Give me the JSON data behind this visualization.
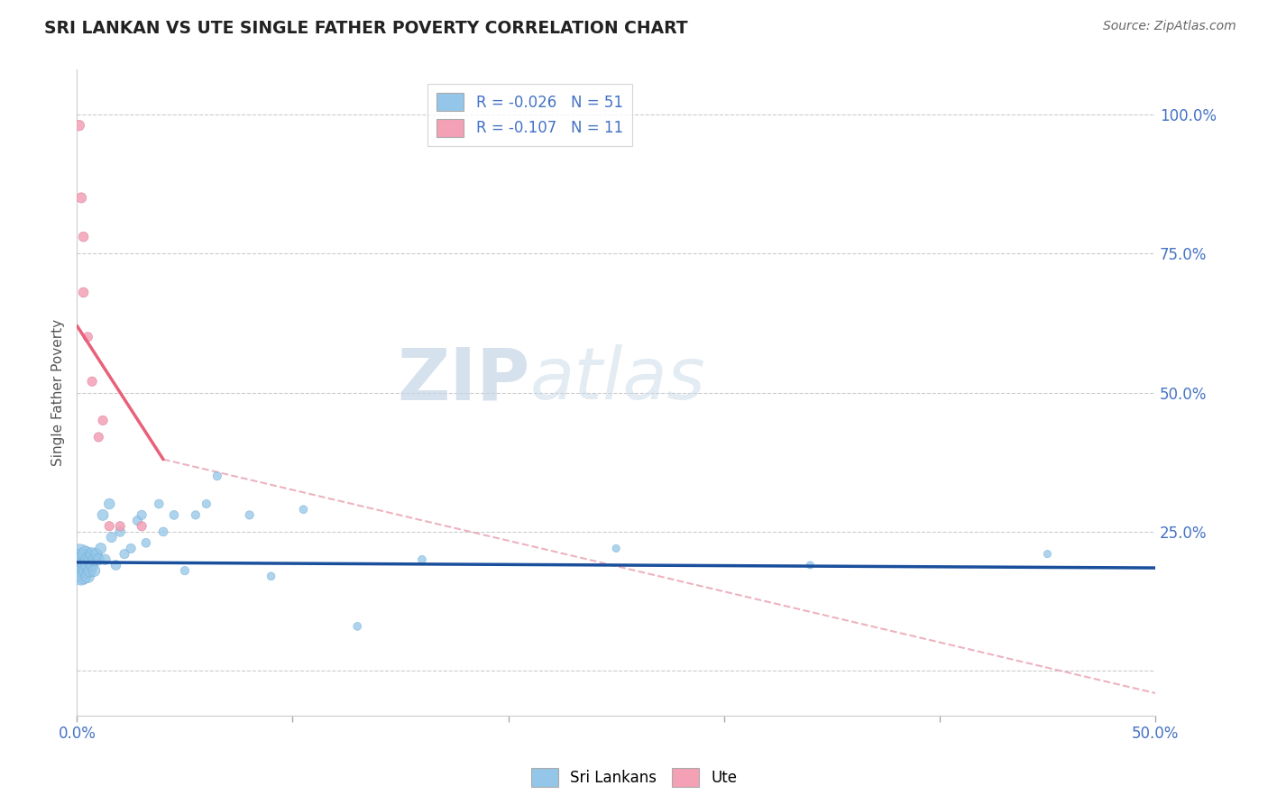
{
  "title": "SRI LANKAN VS UTE SINGLE FATHER POVERTY CORRELATION CHART",
  "source": "Source: ZipAtlas.com",
  "ylabel": "Single Father Poverty",
  "xlim": [
    0.0,
    0.5
  ],
  "ylim": [
    -0.08,
    1.08
  ],
  "legend_r1": "R = -0.026",
  "legend_n1": "N = 51",
  "legend_r2": "R = -0.107",
  "legend_n2": "N = 11",
  "color_sri": "#93c6e8",
  "color_ute": "#f4a0b5",
  "color_sri_line": "#1a4f9c",
  "color_ute_line": "#e8607a",
  "color_dashed": "#e8a0b0",
  "watermark_zip": "ZIP",
  "watermark_atlas": "atlas",
  "sri_lankan_x": [
    0.001,
    0.001,
    0.001,
    0.002,
    0.002,
    0.002,
    0.003,
    0.003,
    0.003,
    0.003,
    0.004,
    0.004,
    0.004,
    0.005,
    0.005,
    0.005,
    0.006,
    0.006,
    0.007,
    0.007,
    0.008,
    0.008,
    0.009,
    0.01,
    0.011,
    0.012,
    0.013,
    0.015,
    0.016,
    0.018,
    0.02,
    0.022,
    0.025,
    0.028,
    0.03,
    0.032,
    0.038,
    0.04,
    0.045,
    0.05,
    0.055,
    0.06,
    0.065,
    0.08,
    0.09,
    0.105,
    0.13,
    0.16,
    0.25,
    0.34,
    0.45
  ],
  "sri_lankan_y": [
    0.2,
    0.19,
    0.18,
    0.2,
    0.19,
    0.17,
    0.2,
    0.19,
    0.18,
    0.17,
    0.21,
    0.19,
    0.18,
    0.2,
    0.19,
    0.17,
    0.2,
    0.18,
    0.21,
    0.19,
    0.2,
    0.18,
    0.21,
    0.2,
    0.22,
    0.28,
    0.2,
    0.3,
    0.24,
    0.19,
    0.25,
    0.21,
    0.22,
    0.27,
    0.28,
    0.23,
    0.3,
    0.25,
    0.28,
    0.18,
    0.28,
    0.3,
    0.35,
    0.28,
    0.17,
    0.29,
    0.08,
    0.2,
    0.22,
    0.19,
    0.21
  ],
  "sri_lankan_sizes": [
    600,
    400,
    300,
    300,
    250,
    200,
    200,
    180,
    160,
    150,
    150,
    140,
    130,
    130,
    120,
    110,
    110,
    100,
    100,
    90,
    90,
    85,
    80,
    80,
    75,
    75,
    70,
    70,
    65,
    60,
    60,
    55,
    55,
    55,
    55,
    50,
    50,
    50,
    50,
    45,
    45,
    45,
    45,
    45,
    40,
    40,
    40,
    40,
    35,
    35,
    35
  ],
  "ute_x": [
    0.001,
    0.002,
    0.003,
    0.003,
    0.005,
    0.007,
    0.01,
    0.012,
    0.015,
    0.02,
    0.03
  ],
  "ute_y": [
    0.98,
    0.85,
    0.78,
    0.68,
    0.6,
    0.52,
    0.42,
    0.45,
    0.26,
    0.26,
    0.26
  ],
  "ute_sizes": [
    70,
    65,
    60,
    60,
    55,
    55,
    55,
    55,
    55,
    55,
    55
  ],
  "sri_line_x": [
    0.0,
    0.5
  ],
  "sri_line_y": [
    0.195,
    0.185
  ],
  "ute_line_x": [
    0.0,
    0.04
  ],
  "ute_line_y": [
    0.62,
    0.38
  ],
  "dashed_line_x": [
    0.04,
    0.5
  ],
  "dashed_line_y": [
    0.38,
    -0.04
  ],
  "ytick_positions": [
    0.0,
    0.25,
    0.5,
    0.75,
    1.0
  ],
  "ytick_labels": [
    "",
    "25.0%",
    "50.0%",
    "75.0%",
    "100.0%"
  ],
  "xtick_positions": [
    0.0,
    0.1,
    0.2,
    0.3,
    0.4,
    0.5
  ],
  "xtick_labels": [
    "0.0%",
    "",
    "",
    "",
    "",
    "50.0%"
  ]
}
